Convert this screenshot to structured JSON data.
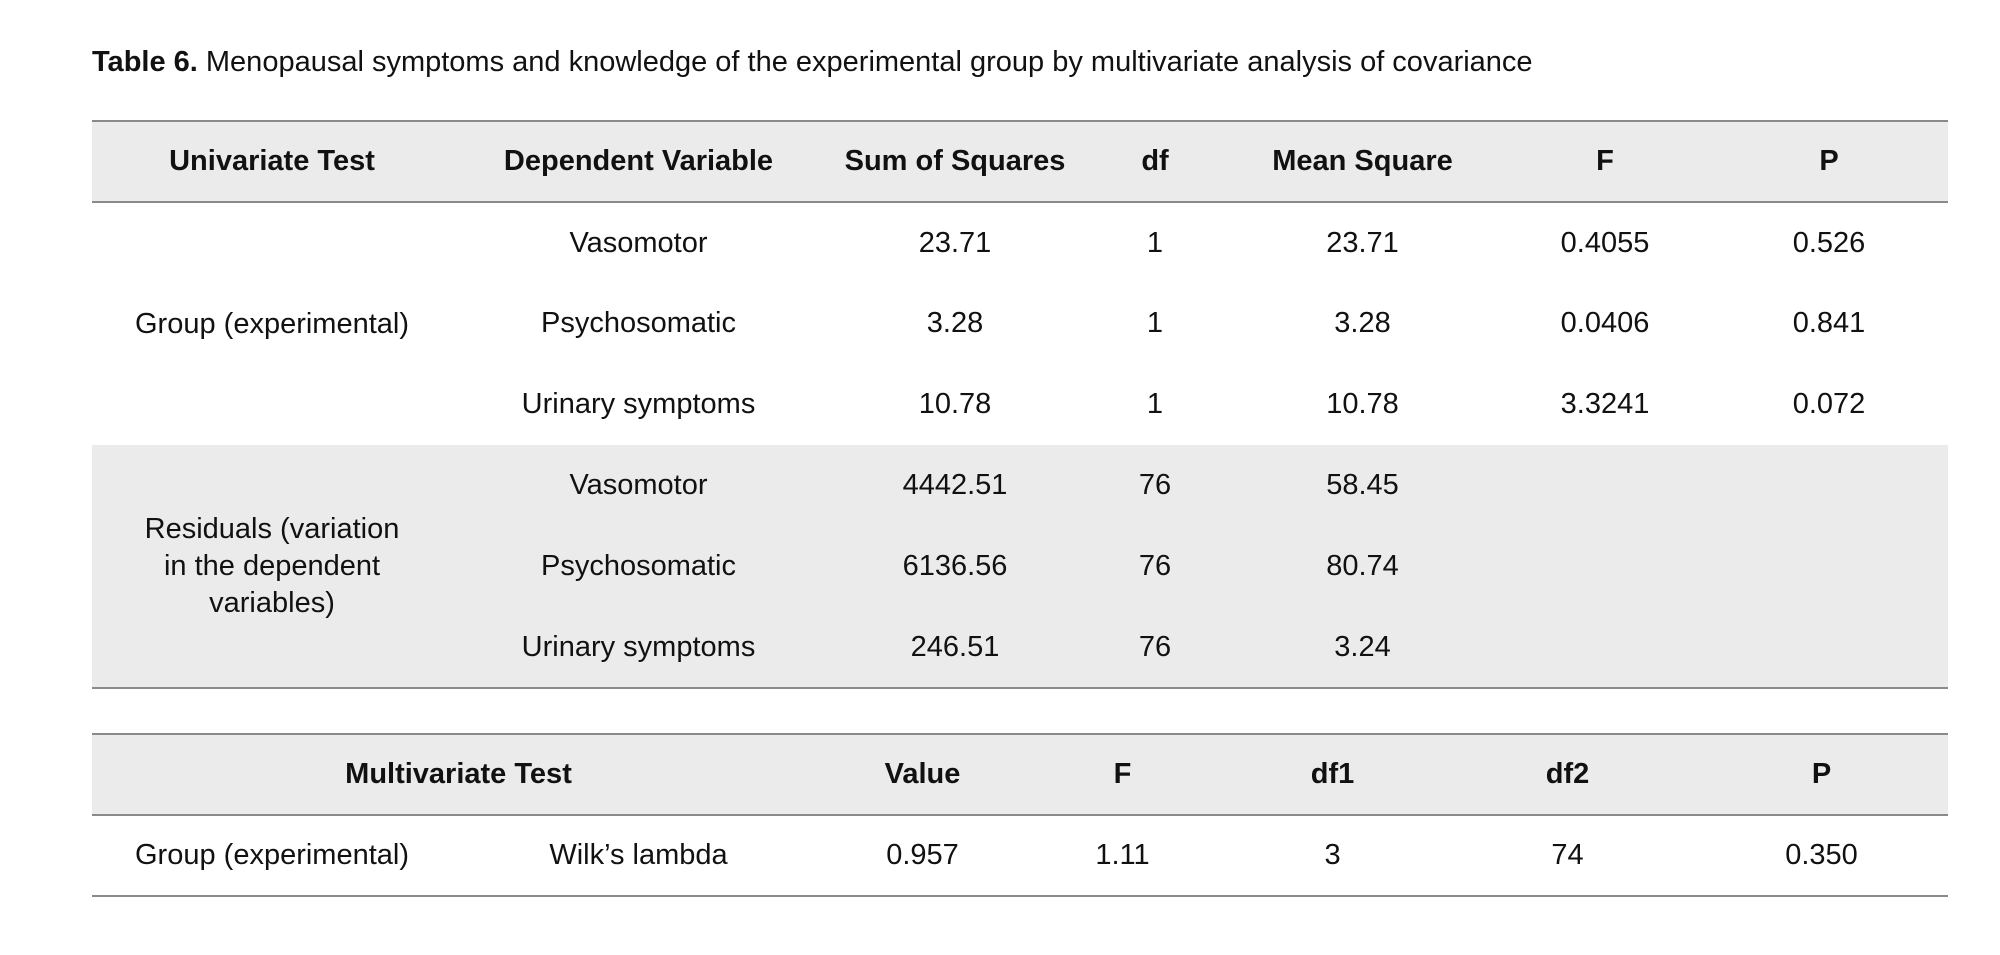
{
  "caption": {
    "label": "Table 6.",
    "text": " Menopausal symptoms and knowledge of the experimental group by multivariate analysis of covariance"
  },
  "univariate": {
    "headers": [
      "Univariate Test",
      "Dependent Variable",
      "Sum of Squares",
      "df",
      "Mean Square",
      "F",
      "P"
    ],
    "groups": [
      {
        "label": "Group (experimental)",
        "rows": [
          {
            "variable": "Vasomotor",
            "ss": "23.71",
            "df": "1",
            "ms": "23.71",
            "f": "0.4055",
            "p": "0.526"
          },
          {
            "variable": "Psychosomatic",
            "ss": "3.28",
            "df": "1",
            "ms": "3.28",
            "f": "0.0406",
            "p": "0.841"
          },
          {
            "variable": "Urinary symptoms",
            "ss": "10.78",
            "df": "1",
            "ms": "10.78",
            "f": "3.3241",
            "p": "0.072"
          }
        ]
      },
      {
        "label": "Residuals (variation in the dependent variables)",
        "rows": [
          {
            "variable": "Vasomotor",
            "ss": "4442.51",
            "df": "76",
            "ms": "58.45",
            "f": "",
            "p": ""
          },
          {
            "variable": "Psychosomatic",
            "ss": "6136.56",
            "df": "76",
            "ms": "80.74",
            "f": "",
            "p": ""
          },
          {
            "variable": "Urinary symptoms",
            "ss": "246.51",
            "df": "76",
            "ms": "3.24",
            "f": "",
            "p": ""
          }
        ]
      }
    ]
  },
  "multivariate": {
    "headers": [
      "Multivariate Test",
      "Value",
      "F",
      "df1",
      "df2",
      "P"
    ],
    "rows": [
      {
        "group": "Group (experimental)",
        "test": "Wilk’s lambda",
        "value": "0.957",
        "f": "1.11",
        "df1": "3",
        "df2": "74",
        "p": "0.350"
      }
    ]
  }
}
